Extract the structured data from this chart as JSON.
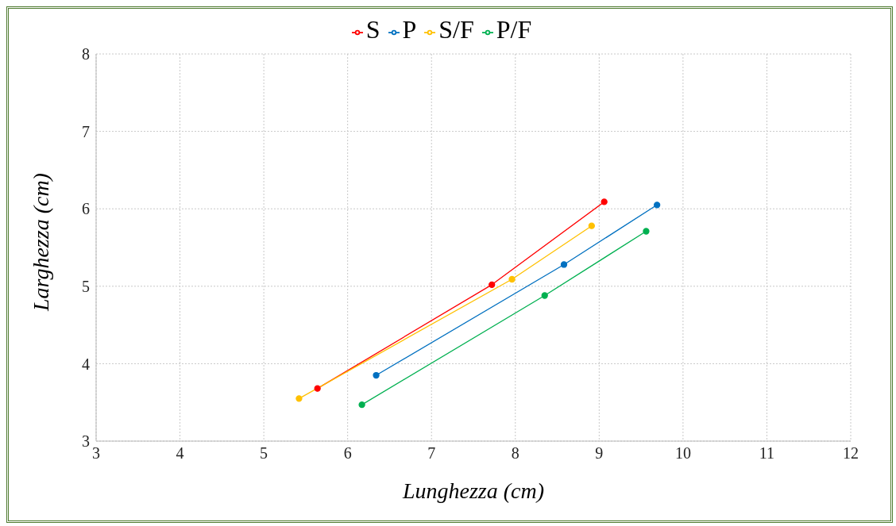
{
  "chart_data": {
    "type": "line",
    "xlabel": "Lunghezza (cm)",
    "ylabel": "Larghezza (cm)",
    "xlim": [
      3,
      12
    ],
    "xticks": [
      3,
      4,
      5,
      6,
      7,
      8,
      9,
      10,
      11,
      12
    ],
    "ylim": [
      3,
      8
    ],
    "yticks": [
      3,
      4,
      5,
      6,
      7,
      8
    ],
    "grid": true,
    "legend": "top",
    "marker": "circle",
    "line_style": "solid",
    "series": [
      {
        "name": "S",
        "color": "#ff0000",
        "x": [
          5.64,
          7.72,
          9.06
        ],
        "values": [
          3.68,
          5.02,
          6.09
        ]
      },
      {
        "name": "P",
        "color": "#0070c0",
        "x": [
          6.34,
          8.58,
          9.69
        ],
        "values": [
          3.85,
          5.28,
          6.05
        ]
      },
      {
        "name": "S/F",
        "color": "#ffc000",
        "x": [
          5.42,
          7.96,
          8.91
        ],
        "values": [
          3.55,
          5.09,
          5.78
        ]
      },
      {
        "name": "P/F",
        "color": "#00b050",
        "x": [
          6.17,
          8.35,
          9.56
        ],
        "values": [
          3.47,
          4.88,
          5.71
        ]
      }
    ]
  }
}
